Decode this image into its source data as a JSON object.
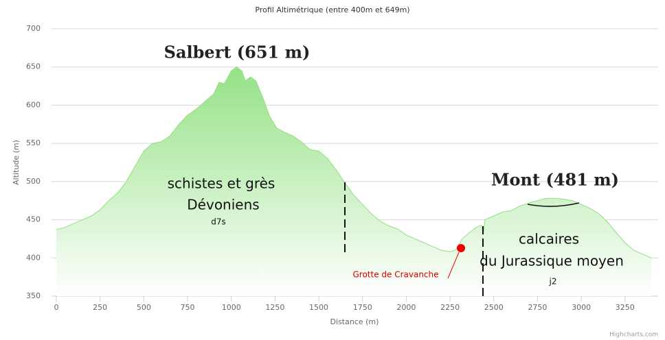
{
  "chart_data": {
    "type": "area",
    "title": "Profil Altimétrique (entre 400m et 649m)",
    "x_label": "Distance (m)",
    "y_label": "Altitude (m)",
    "credit": "Highcharts.com",
    "color": "#90e080",
    "grid": true,
    "xlim": [
      0,
      3400
    ],
    "ylim": [
      350,
      700
    ],
    "xticks": [
      0,
      250,
      500,
      750,
      1000,
      1250,
      1500,
      1750,
      2000,
      2250,
      2500,
      2750,
      3000,
      3250
    ],
    "yticks": [
      350,
      400,
      450,
      500,
      550,
      600,
      650,
      700
    ],
    "annotations": [
      "Salbert (651 m)",
      "schistes et grès",
      "Dévoniens",
      "d7s",
      "Mont (481 m)",
      "calcaires",
      "du Jurassique moyen",
      "j2",
      "Grotte de Cravanche"
    ],
    "x": [
      0,
      50,
      100,
      150,
      200,
      250,
      300,
      350,
      400,
      450,
      500,
      550,
      600,
      650,
      700,
      750,
      800,
      850,
      900,
      930,
      960,
      1000,
      1030,
      1060,
      1080,
      1110,
      1140,
      1180,
      1220,
      1260,
      1300,
      1350,
      1400,
      1450,
      1500,
      1550,
      1600,
      1650,
      1700,
      1750,
      1800,
      1850,
      1900,
      1950,
      2000,
      2050,
      2100,
      2150,
      2200,
      2250,
      2280,
      2320,
      2360,
      2400,
      2430,
      2440,
      2450,
      2500,
      2550,
      2600,
      2650,
      2700,
      2750,
      2800,
      2850,
      2900,
      2950,
      3000,
      3050,
      3100,
      3150,
      3200,
      3250,
      3300,
      3350,
      3400
    ],
    "values": [
      437,
      440,
      445,
      450,
      455,
      463,
      475,
      485,
      500,
      520,
      540,
      550,
      552,
      560,
      575,
      587,
      595,
      605,
      615,
      630,
      628,
      645,
      650,
      645,
      632,
      637,
      632,
      610,
      585,
      570,
      565,
      560,
      552,
      542,
      540,
      530,
      515,
      498,
      482,
      470,
      458,
      448,
      442,
      438,
      430,
      425,
      420,
      415,
      410,
      408,
      410,
      425,
      433,
      440,
      443,
      432,
      450,
      455,
      460,
      462,
      468,
      472,
      475,
      478,
      478,
      477,
      475,
      470,
      465,
      458,
      447,
      433,
      420,
      410,
      405,
      400
    ]
  }
}
